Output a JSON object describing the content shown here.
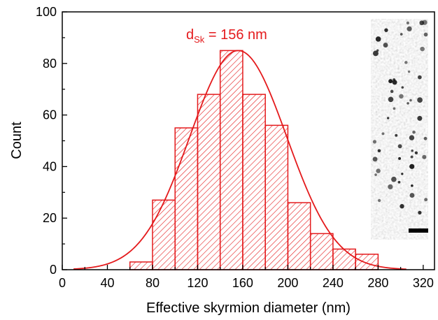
{
  "chart_data": {
    "type": "bar",
    "title": "",
    "xlabel": "Effective skyrmion diameter (nm)",
    "ylabel": "Count",
    "xlim": [
      0,
      330
    ],
    "ylim": [
      0,
      100
    ],
    "x_ticks": [
      0,
      40,
      80,
      120,
      160,
      200,
      240,
      280,
      320
    ],
    "y_ticks": [
      0,
      20,
      40,
      60,
      80,
      100
    ],
    "bin_width": 20,
    "bin_starts": [
      60,
      80,
      100,
      120,
      140,
      160,
      180,
      200,
      220,
      240,
      260
    ],
    "values": [
      3,
      27,
      55,
      68,
      85,
      68,
      56,
      26,
      14,
      8,
      6
    ],
    "fit": {
      "type": "gaussian",
      "mean": 156,
      "sigma": 43,
      "peak": 85,
      "x_range": [
        10,
        305
      ]
    },
    "annotation": {
      "text_main": "d",
      "text_sub": "Sk",
      "text_rest": " = 156 nm"
    },
    "grid": false,
    "bar_color": "#e41a1c",
    "fit_color": "#e41a1c",
    "has_inset_image": true
  }
}
